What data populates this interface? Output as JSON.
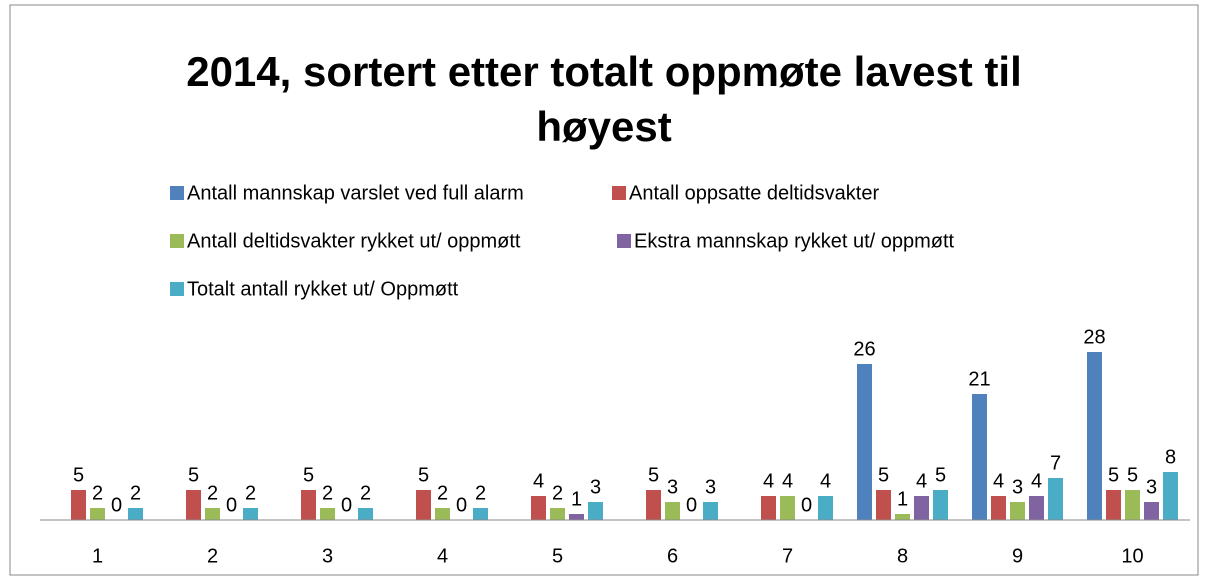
{
  "chart_data": {
    "type": "bar",
    "title": "2014, sortert etter totalt oppmøte lavest til høyest",
    "categories": [
      "1",
      "2",
      "3",
      "4",
      "5",
      "6",
      "7",
      "8",
      "9",
      "10"
    ],
    "series": [
      {
        "name": "Antall mannskap varslet ved full alarm",
        "color": "#4f81bd",
        "values": [
          null,
          null,
          null,
          null,
          null,
          null,
          null,
          26,
          21,
          28
        ]
      },
      {
        "name": "Antall oppsatte deltidsvakter",
        "color": "#c0504d",
        "values": [
          5,
          5,
          5,
          5,
          4,
          5,
          4,
          5,
          4,
          5
        ]
      },
      {
        "name": "Antall deltidsvakter rykket ut/ oppmøtt",
        "color": "#9bbb59",
        "values": [
          2,
          2,
          2,
          2,
          2,
          3,
          4,
          1,
          3,
          5
        ]
      },
      {
        "name": "Ekstra mannskap rykket ut/ oppmøtt",
        "color": "#8064a2",
        "values": [
          0,
          0,
          0,
          0,
          1,
          0,
          0,
          4,
          4,
          3
        ]
      },
      {
        "name": "Totalt antall rykket ut/ Oppmøtt",
        "color": "#4bacc6",
        "values": [
          2,
          2,
          2,
          2,
          3,
          3,
          4,
          5,
          7,
          8
        ]
      }
    ],
    "ylim": [
      0,
      30
    ],
    "legend": "top"
  }
}
